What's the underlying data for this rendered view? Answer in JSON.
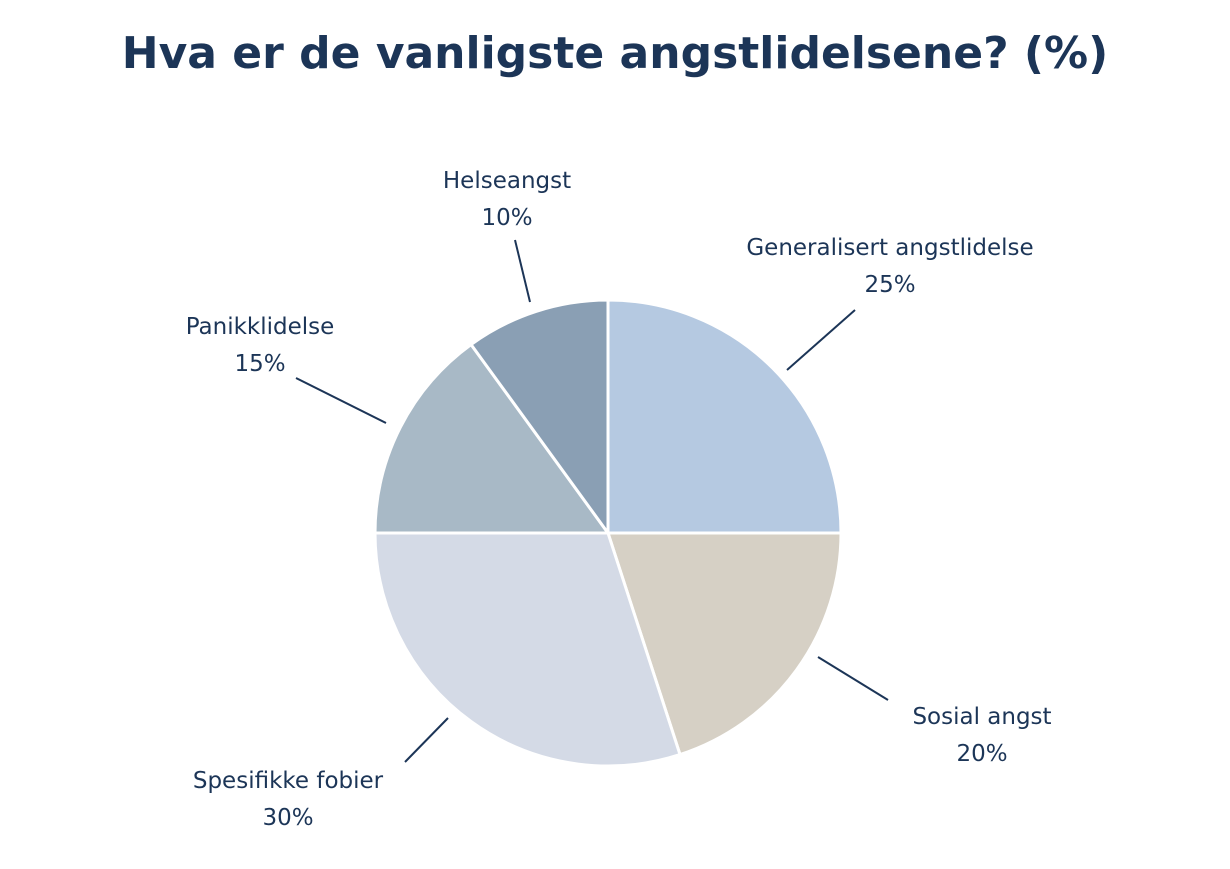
{
  "chart_data": {
    "type": "pie",
    "title": "Hva er de vanligste angstlidelsene? (%)",
    "start_angle": "12 o'clock",
    "direction": "clockwise",
    "slices": [
      {
        "label": "Generalisert angstlidelse",
        "value": 25,
        "display": "25%",
        "color": "#b5c9e1"
      },
      {
        "label": "Sosial angst",
        "value": 20,
        "display": "20%",
        "color": "#d6d0c5"
      },
      {
        "label": "Spesifikke fobier",
        "value": 30,
        "display": "30%",
        "color": "#d4dae6"
      },
      {
        "label": "Panikklidelse",
        "value": 15,
        "display": "15%",
        "color": "#a8b9c6"
      },
      {
        "label": "Helseangst",
        "value": 10,
        "display": "10%",
        "color": "#8a9fb4"
      }
    ],
    "text_color": "#1c3557"
  }
}
